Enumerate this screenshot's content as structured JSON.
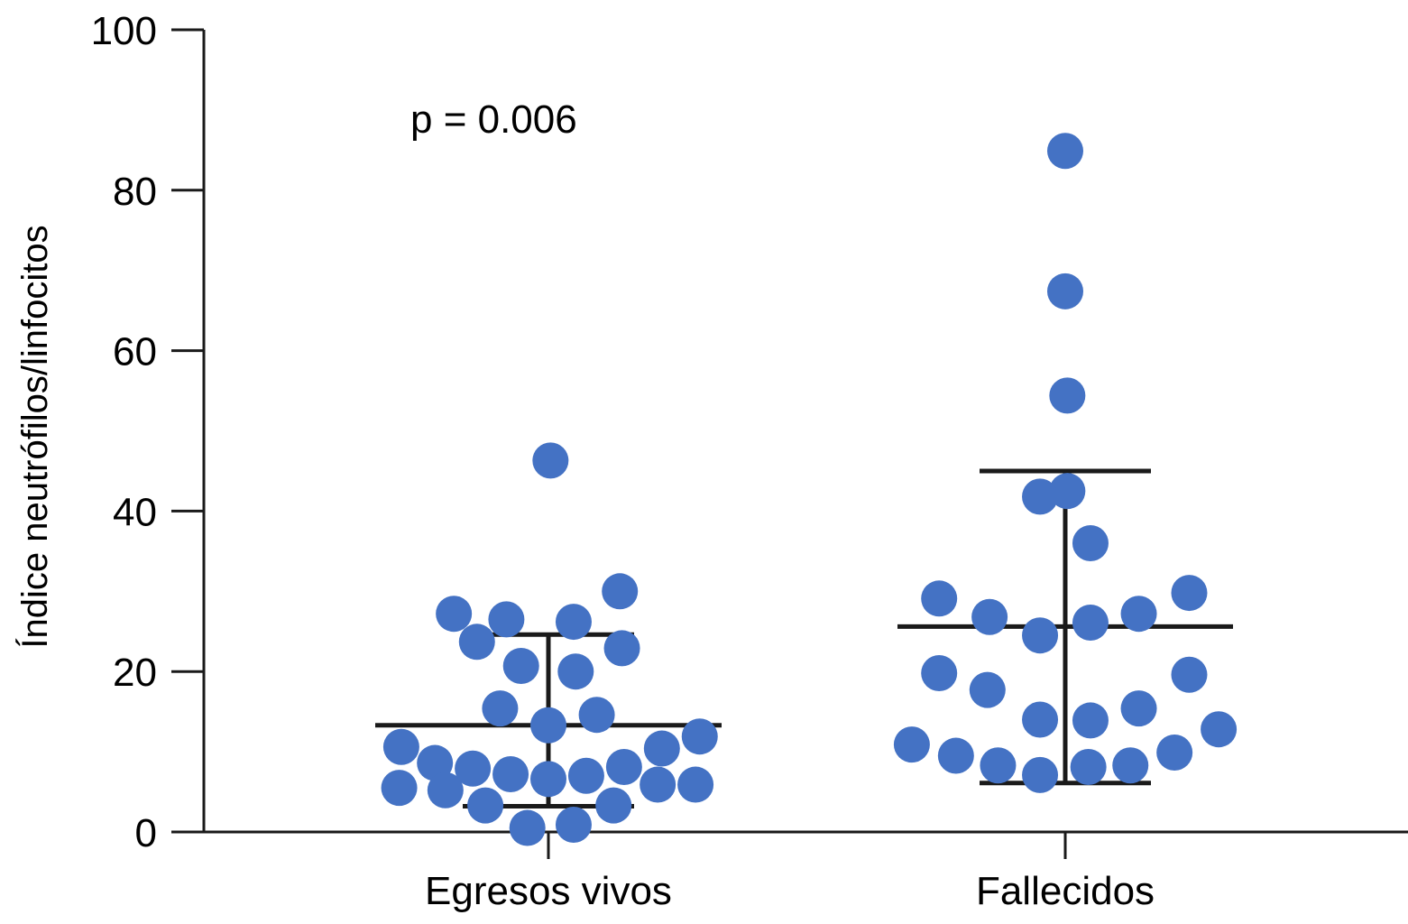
{
  "chart_data": {
    "type": "scatter",
    "title": "",
    "xlabel": "",
    "ylabel": "Índice neutrófilos/linfocitos",
    "ylim": [
      0,
      100
    ],
    "yticks": [
      0,
      20,
      40,
      60,
      80,
      100
    ],
    "categories": [
      "Egresos vivos",
      "Fallecidos"
    ],
    "annotation": "p = 0.006",
    "marker_color": "#4472c4",
    "line_color": "#1a1a1a",
    "series": [
      {
        "name": "Egresos vivos",
        "center": 13.3,
        "error_low": 3.2,
        "error_high": 24.6,
        "points": [
          {
            "jitter": 0.01,
            "y": 46.3
          },
          {
            "jitter": 0.34,
            "y": 30.0
          },
          {
            "jitter": -0.45,
            "y": 27.2
          },
          {
            "jitter": -0.2,
            "y": 26.5
          },
          {
            "jitter": 0.12,
            "y": 26.2
          },
          {
            "jitter": -0.34,
            "y": 23.7
          },
          {
            "jitter": 0.35,
            "y": 22.9
          },
          {
            "jitter": -0.13,
            "y": 20.7
          },
          {
            "jitter": 0.13,
            "y": 20.0
          },
          {
            "jitter": -0.23,
            "y": 15.4
          },
          {
            "jitter": 0.23,
            "y": 14.6
          },
          {
            "jitter": 0.0,
            "y": 13.3
          },
          {
            "jitter": 0.72,
            "y": 11.9
          },
          {
            "jitter": -0.7,
            "y": 10.6
          },
          {
            "jitter": 0.54,
            "y": 10.4
          },
          {
            "jitter": -0.54,
            "y": 8.6
          },
          {
            "jitter": -0.36,
            "y": 7.9
          },
          {
            "jitter": 0.36,
            "y": 8.1
          },
          {
            "jitter": -0.18,
            "y": 7.2
          },
          {
            "jitter": 0.18,
            "y": 7.0
          },
          {
            "jitter": 0.0,
            "y": 6.6
          },
          {
            "jitter": 0.52,
            "y": 5.9
          },
          {
            "jitter": 0.7,
            "y": 5.9
          },
          {
            "jitter": -0.71,
            "y": 5.5
          },
          {
            "jitter": -0.49,
            "y": 5.2
          },
          {
            "jitter": -0.3,
            "y": 3.3
          },
          {
            "jitter": 0.31,
            "y": 3.3
          },
          {
            "jitter": -0.1,
            "y": 0.5
          },
          {
            "jitter": 0.12,
            "y": 0.9
          }
        ]
      },
      {
        "name": "Fallecidos",
        "center": 25.6,
        "error_low": 6.1,
        "error_high": 45.0,
        "points": [
          {
            "jitter": 0.0,
            "y": 84.9
          },
          {
            "jitter": 0.0,
            "y": 67.4
          },
          {
            "jitter": 0.01,
            "y": 54.4
          },
          {
            "jitter": 0.01,
            "y": 42.5
          },
          {
            "jitter": -0.12,
            "y": 41.8
          },
          {
            "jitter": 0.12,
            "y": 36.0
          },
          {
            "jitter": 0.59,
            "y": 29.8
          },
          {
            "jitter": -0.6,
            "y": 29.1
          },
          {
            "jitter": -0.36,
            "y": 26.8
          },
          {
            "jitter": 0.35,
            "y": 27.2
          },
          {
            "jitter": 0.12,
            "y": 26.1
          },
          {
            "jitter": -0.12,
            "y": 24.5
          },
          {
            "jitter": -0.6,
            "y": 19.8
          },
          {
            "jitter": 0.59,
            "y": 19.6
          },
          {
            "jitter": -0.37,
            "y": 17.7
          },
          {
            "jitter": 0.35,
            "y": 15.4
          },
          {
            "jitter": -0.12,
            "y": 14.0
          },
          {
            "jitter": 0.12,
            "y": 13.9
          },
          {
            "jitter": 0.73,
            "y": 12.8
          },
          {
            "jitter": -0.73,
            "y": 10.9
          },
          {
            "jitter": -0.52,
            "y": 9.5
          },
          {
            "jitter": 0.52,
            "y": 9.9
          },
          {
            "jitter": -0.32,
            "y": 8.3
          },
          {
            "jitter": 0.31,
            "y": 8.3
          },
          {
            "jitter": 0.11,
            "y": 8.1
          },
          {
            "jitter": -0.12,
            "y": 7.1
          }
        ]
      }
    ]
  }
}
